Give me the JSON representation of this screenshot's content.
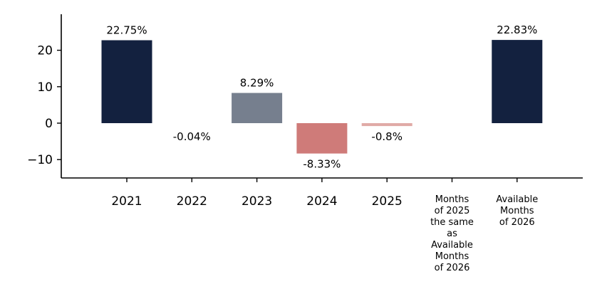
{
  "chart_data": {
    "type": "bar",
    "categories": [
      "2021",
      "2022",
      "2023",
      "2024",
      "2025",
      "Months of 2025 the same as Available Months of 2026",
      "Available Months of 2026"
    ],
    "category_lines": [
      [
        "2021"
      ],
      [
        "2022"
      ],
      [
        "2023"
      ],
      [
        "2024"
      ],
      [
        "2025"
      ],
      [
        "Months",
        "of 2025",
        "the same",
        "as",
        "Available",
        "Months",
        "of 2026"
      ],
      [
        "Available",
        "Months",
        "of 2026"
      ]
    ],
    "values": [
      22.75,
      -0.04,
      8.29,
      -8.33,
      -0.8,
      null,
      22.83
    ],
    "data_labels": [
      "22.75%",
      "-0.04%",
      "8.29%",
      "-8.33%",
      "-0.8%",
      "",
      "22.83%"
    ],
    "colors": [
      "#13213f",
      "#13213f",
      "#767f8e",
      "#cf7b79",
      "#e0aaa6",
      "#13213f",
      "#13213f"
    ],
    "y_ticks": [
      20,
      10,
      0,
      -10
    ],
    "y_tick_labels": [
      "20",
      "10",
      "0",
      "−10"
    ],
    "ylim": [
      -15,
      30
    ],
    "title": "",
    "xlabel": "",
    "ylabel": "",
    "grid": false,
    "legend": "none"
  }
}
